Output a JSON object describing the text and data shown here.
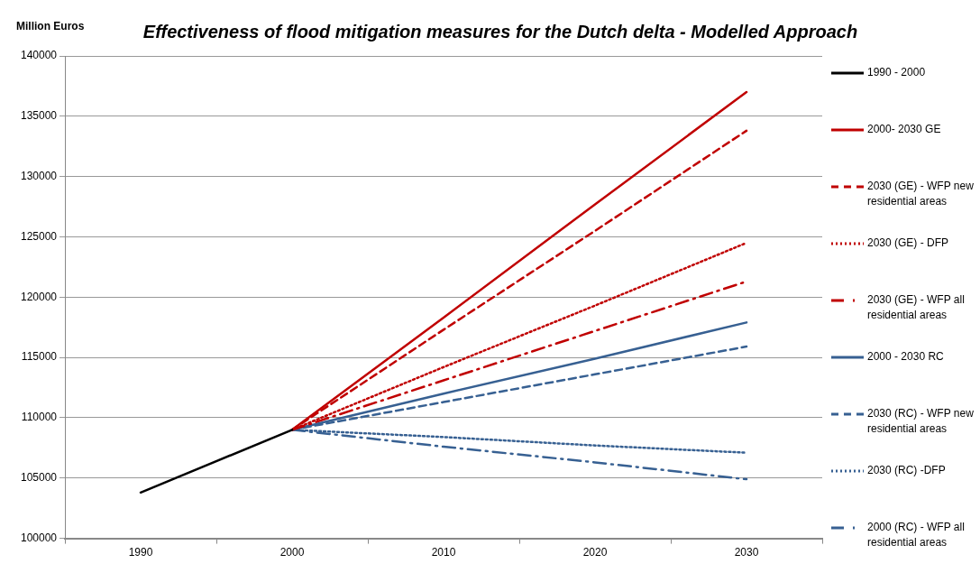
{
  "chart_data": {
    "type": "line",
    "title": "Effectiveness of flood mitigation measures for the Dutch delta - Modelled Approach",
    "ylabel": "Million Euros",
    "categories": [
      "1990",
      "2000",
      "2010",
      "2020",
      "2030"
    ],
    "ylim": [
      100000,
      140000
    ],
    "yticks": [
      100000,
      105000,
      110000,
      115000,
      120000,
      125000,
      130000,
      135000,
      140000
    ],
    "grid": "y",
    "legend": "right",
    "marker": "none",
    "series": [
      {
        "name": "1990 - 2000",
        "color": "#000000",
        "line_style": "solid",
        "values": [
          103800,
          109000,
          null,
          null,
          null
        ]
      },
      {
        "name": "2000- 2030 GE",
        "color": "#c00000",
        "line_style": "solid",
        "values": [
          null,
          109000,
          118300,
          127700,
          137000
        ]
      },
      {
        "name": "2030 (GE) - WFP new residential areas",
        "color": "#c00000",
        "line_style": "dashed",
        "values": [
          null,
          109000,
          117300,
          125500,
          133800
        ]
      },
      {
        "name": "2030 (GE) - DFP",
        "color": "#c00000",
        "line_style": "dotted",
        "values": [
          null,
          109000,
          114200,
          119300,
          124500
        ]
      },
      {
        "name": "2030 (GE) - WFP all residential areas",
        "color": "#c00000",
        "line_style": "dashdot",
        "values": [
          null,
          109000,
          113100,
          117200,
          121300
        ]
      },
      {
        "name": "2000 - 2030 RC",
        "color": "#376092",
        "line_style": "solid",
        "values": [
          null,
          109000,
          112000,
          114900,
          117900
        ]
      },
      {
        "name": "2030 (RC) - WFP new residential areas",
        "color": "#376092",
        "line_style": "dashed",
        "values": [
          null,
          109000,
          111300,
          113600,
          115900
        ]
      },
      {
        "name": "2030 (RC) -DFP",
        "color": "#376092",
        "line_style": "dotted",
        "values": [
          null,
          109000,
          108400,
          107700,
          107100
        ]
      },
      {
        "name": "2000 (RC) - WFP all residential areas",
        "color": "#376092",
        "line_style": "dashdot",
        "values": [
          null,
          109000,
          107600,
          106300,
          104900
        ]
      }
    ]
  }
}
